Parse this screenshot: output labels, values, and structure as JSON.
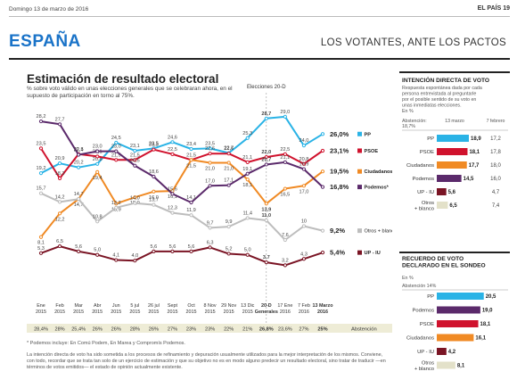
{
  "header": {
    "date": "Domingo 13 de marzo de 2016",
    "paper": "EL PAÍS",
    "page": "19",
    "section": "ESPAÑA",
    "section_sub": "LOS VOTANTES, ANTE LOS PACTOS"
  },
  "chart_data": [
    {
      "type": "line",
      "title": "Estimación de resultado electoral",
      "subtitle": "% sobre voto válido en unas elecciones generales que se celebraran ahora, en el supuesto de participación en torno al 75%.",
      "election_marker": "Elecciones 20-D",
      "categories": [
        "Ene 2015",
        "Feb 2015",
        "Mar 2015",
        "Abr 2015",
        "Jun 2015",
        "5 jul 2015",
        "26 jul 2015",
        "Sept 2015",
        "Oct 2015",
        "8 Nov 2015",
        "29 Nov 2015",
        "13 Dic 2015",
        "20-D Generales",
        "17 Ene 2016",
        "7 Feb 2016",
        "13 Marzo 2016"
      ],
      "category_lines": [
        [
          "Ene",
          "2015"
        ],
        [
          "Feb",
          "2015"
        ],
        [
          "Mar",
          "2015"
        ],
        [
          "Abr",
          "2015"
        ],
        [
          "Jun",
          "2015"
        ],
        [
          "5 jul",
          "2015"
        ],
        [
          "26 jul",
          "2015"
        ],
        [
          "Sept",
          "2015"
        ],
        [
          "Oct",
          "2015"
        ],
        [
          "8 Nov",
          "2015"
        ],
        [
          "29 Nov",
          "2015"
        ],
        [
          "13 Dic",
          "2015"
        ],
        [
          "20-D",
          "Generales"
        ],
        [
          "17 Ene",
          "2016"
        ],
        [
          "7 Feb",
          "2016"
        ],
        [
          "13 Marzo",
          "2016"
        ]
      ],
      "series": [
        {
          "name": "PP",
          "color": "#2ab3e6",
          "values": [
            19.2,
            20.9,
            20.2,
            20.8,
            24.5,
            23.1,
            23.5,
            24.6,
            23.4,
            23.5,
            22.7,
            25.3,
            28.7,
            29.0,
            24.0,
            26.0
          ],
          "labels": [
            "19,2",
            "20,9",
            "20,2",
            "20,8",
            "24,5",
            "23,1",
            "23,5",
            "24,6",
            "23,4",
            "23,5",
            "22,7",
            "25,3",
            "28,7",
            "29,0",
            "24,0",
            "26,0%"
          ]
        },
        {
          "name": "PSOE",
          "color": "#d0122d",
          "values": [
            23.5,
            18.3,
            22.5,
            22.1,
            21.5,
            21.5,
            23.3,
            22.5,
            21.5,
            22.6,
            22.6,
            21.1,
            22.0,
            22.5,
            20.8,
            23.1
          ],
          "labels": [
            "23,5",
            "18,3",
            "22,5",
            "22,1",
            "21,5",
            "21,5",
            "23,3",
            "22,5",
            "21,5",
            "22,6",
            "22,6",
            "21,1",
            "22,0",
            "22,5",
            "20,8",
            "23,1%"
          ]
        },
        {
          "name": "Ciudadanos",
          "color": "#f08a24",
          "values": [
            8.1,
            12.2,
            14.7,
            19.4,
            13.9,
            15.0,
            16.0,
            16.1,
            21.5,
            21.0,
            21.0,
            18.1,
            13.9,
            16.5,
            17.0,
            19.5
          ],
          "labels": [
            "8,1",
            "12,2",
            "14,7",
            "19,4",
            "13,9",
            "15,0",
            "16,0",
            "16,1",
            "21,5",
            "21,0",
            "21,0",
            "18,1",
            "13,9",
            "16,5",
            "17,0",
            "19,5%"
          ]
        },
        {
          "name": "Podemos*",
          "color": "#5b2a6b",
          "values": [
            28.2,
            27.7,
            22.4,
            23.0,
            23.0,
            20.5,
            18.6,
            15.6,
            14.1,
            17.0,
            17.1,
            19.1,
            20.7,
            21.1,
            19.9,
            16.8
          ],
          "labels": [
            "28,2",
            "27,7",
            "22,4",
            "23,0",
            "23,0",
            "20,5",
            "18,6",
            "15,6",
            "14,1",
            "17,0",
            "17,1",
            "19,1",
            "20,7",
            "21,1",
            "19,9",
            "16,8%"
          ]
        },
        {
          "name": "Otros + blanco",
          "color": "#bdbdbd",
          "values": [
            15.7,
            14.2,
            14.7,
            10.8,
            13.2,
            14.0,
            13.7,
            12.3,
            11.9,
            9.7,
            9.9,
            11.4,
            11.0,
            7.6,
            10.0,
            9.2
          ],
          "labels": [
            "15,7",
            "14,2",
            "14,7",
            "10,8",
            "13,2",
            "14,0",
            "13,7",
            "12,3",
            "11,9",
            "9,7",
            "9,9",
            "11,4",
            "11,0",
            "7,6",
            "10",
            "9,2%"
          ]
        },
        {
          "name": "UP - IU",
          "color": "#7a1424",
          "values": [
            5.3,
            6.5,
            5.6,
            5.0,
            4.1,
            4.0,
            5.6,
            5.6,
            5.6,
            6.3,
            5.2,
            5.0,
            3.7,
            3.2,
            4.3,
            5.4
          ],
          "labels": [
            "5,3",
            "6,5",
            "5,6",
            "5,0",
            "4,1",
            "4,0",
            "5,6",
            "5,6",
            "5,6",
            "6,3",
            "5,2",
            "5,0",
            "3,7",
            "3,2",
            "4,3",
            "5,4%"
          ]
        }
      ],
      "abstention": {
        "label": "Abstención",
        "values": [
          "28,4%",
          "28%",
          "25,4%",
          "26%",
          "26%",
          "28%",
          "26%",
          "27%",
          "23%",
          "23%",
          "22%",
          "21%",
          "26,8%",
          "23,6%",
          "27%",
          "25%"
        ]
      },
      "ylim": [
        0,
        31
      ],
      "grid": false,
      "legend": "right"
    },
    {
      "type": "bar",
      "title": "INTENCIÓN DIRECTA DE VOTO",
      "subtitle": "Respuesta espontánea dada por cada persona entrevistada al preguntarle por el posible sentido de su voto en unas inmediatas elecciones.",
      "unit": "En %",
      "abstention_text": "Abstención:",
      "abstention_value": "18,7%",
      "column_headers": [
        "13 marzo",
        "7 febrero"
      ],
      "categories": [
        "PP",
        "PSOE",
        "Ciudadanos",
        "Podemos",
        "UP - IU",
        "Otros + blanco"
      ],
      "category_lines": [
        [
          "PP"
        ],
        [
          "PSOE"
        ],
        [
          "Ciudadanos"
        ],
        [
          "Podemos"
        ],
        [
          "UP - IU"
        ],
        [
          "Otros",
          "+ blanco"
        ]
      ],
      "colors": [
        "#2ab3e6",
        "#d0122d",
        "#f08a24",
        "#5b2a6b",
        "#7a1424",
        "#e3e1c9"
      ],
      "values": [
        18.9,
        18.1,
        17.7,
        14.5,
        5.6,
        6.5
      ],
      "labels": [
        "18,9",
        "18,1",
        "17,7",
        "14,5",
        "5,6",
        "6,5"
      ],
      "previous": [
        "17,2",
        "17,8",
        "18,0",
        "16,0",
        "4,7",
        "7,4"
      ],
      "xlim": [
        0,
        21
      ]
    },
    {
      "type": "bar",
      "title": "RECUERDO DE VOTO DECLARADO EN EL SONDEO",
      "unit": "En %",
      "abstention_text": "Abstención 14%",
      "categories": [
        "PP",
        "Podemos",
        "PSOE",
        "Ciudadanos",
        "UP - IU",
        "Otros + blanco"
      ],
      "category_lines": [
        [
          "PP"
        ],
        [
          "Podemos"
        ],
        [
          "PSOE"
        ],
        [
          "Ciudadanos"
        ],
        [
          "UP - IU"
        ],
        [
          "Otros",
          "+ blanco"
        ]
      ],
      "colors": [
        "#2ab3e6",
        "#5b2a6b",
        "#d0122d",
        "#f08a24",
        "#7a1424",
        "#e3e1c9"
      ],
      "values": [
        20.5,
        19.0,
        18.1,
        16.1,
        4.2,
        8.1
      ],
      "labels": [
        "20,5",
        "19,0",
        "18,1",
        "16,1",
        "4,2",
        "8,1"
      ],
      "xlim": [
        0,
        21
      ]
    }
  ],
  "footnotes": {
    "podemos_note": "* Podemos incluye: En Comú Podem, En Marea y Compromís Podemos.",
    "method_note": "La intención directa de voto ha sido sometida a los procesos de refinamiento y depuración usualmente utilizados para la mejor interpretación de los mismos. Conviene, con todo, recordar que se trata tan solo de un ejercicio de estimación y que su objetivo no es en modo alguno predecir un resultado electoral, sino tratar de traducir —en términos de votos emitidos— el estado de opinión actualmente existente."
  }
}
